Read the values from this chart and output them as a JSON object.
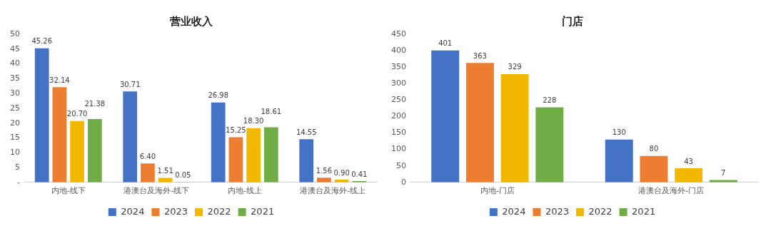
{
  "chart_data": [
    {
      "type": "bar",
      "title": "营业收入",
      "categories": [
        "内地-线下",
        "港澳台及海外-线下",
        "内地-线上",
        "港澳台及海外-线上"
      ],
      "series": [
        {
          "name": "2024",
          "color": "#4472c4",
          "values": [
            45.26,
            30.71,
            26.98,
            14.55
          ],
          "value_labels": [
            "45.26",
            "30.71",
            "26.98",
            "14.55"
          ]
        },
        {
          "name": "2023",
          "color": "#ed7d31",
          "values": [
            32.14,
            6.4,
            15.25,
            1.56
          ],
          "value_labels": [
            "32.14",
            "6.40",
            "15.25",
            "1.56"
          ]
        },
        {
          "name": "2022",
          "color": "#f2b800",
          "values": [
            20.7,
            1.51,
            18.3,
            0.9
          ],
          "value_labels": [
            "20.70",
            "1.51",
            "18.30",
            "0.90"
          ]
        },
        {
          "name": "2021",
          "color": "#70ad47",
          "values": [
            21.38,
            0.05,
            18.61,
            0.41
          ],
          "value_labels": [
            "21.38",
            "0.05",
            "18.61",
            "0.41"
          ]
        }
      ],
      "ylim": [
        0,
        50
      ],
      "yticks": [
        {
          "value": 0,
          "label": "-"
        },
        5,
        10,
        15,
        20,
        25,
        30,
        35,
        40,
        45,
        50
      ],
      "legend": "bottom"
    },
    {
      "type": "bar",
      "title": "门店",
      "categories": [
        "内地-门店",
        "港澳台及海外-门店"
      ],
      "series": [
        {
          "name": "2024",
          "color": "#4472c4",
          "values": [
            401,
            130
          ]
        },
        {
          "name": "2023",
          "color": "#ed7d31",
          "values": [
            363,
            80
          ]
        },
        {
          "name": "2022",
          "color": "#f2b800",
          "values": [
            329,
            43
          ]
        },
        {
          "name": "2021",
          "color": "#70ad47",
          "values": [
            228,
            7
          ]
        }
      ],
      "ylim": [
        0,
        450
      ],
      "yticks": [
        0,
        50,
        100,
        150,
        200,
        250,
        300,
        350,
        400,
        450
      ],
      "data_labels": true,
      "legend": "bottom"
    }
  ]
}
